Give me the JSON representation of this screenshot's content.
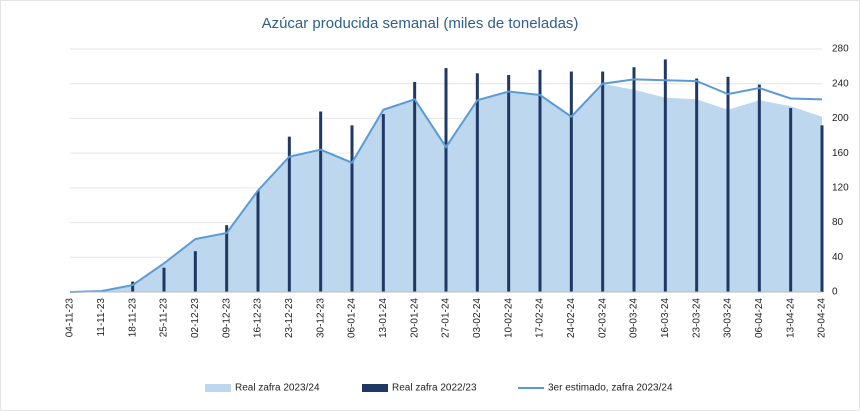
{
  "chart_data": {
    "type": "combo",
    "title": "Azúcar producida semanal (miles de toneladas)",
    "categories": [
      "04-11-23",
      "11-11-23",
      "18-11-23",
      "25-11-23",
      "02-12-23",
      "09-12-23",
      "16-12-23",
      "23-12-23",
      "30-12-23",
      "06-01-24",
      "13-01-24",
      "20-01-24",
      "27-01-24",
      "03-02-24",
      "10-02-24",
      "17-02-24",
      "24-02-24",
      "02-03-24",
      "09-03-24",
      "16-03-24",
      "23-03-24",
      "30-03-24",
      "06-04-24",
      "13-04-24",
      "20-04-24"
    ],
    "series": [
      {
        "name": "Real zafra 2023/24",
        "type": "area",
        "color": "#bcd7ee",
        "values": [
          0,
          1,
          8,
          33,
          61,
          68,
          117,
          156,
          164,
          149,
          210,
          222,
          167,
          221,
          231,
          227,
          202,
          240,
          233,
          224,
          222,
          210,
          221,
          214,
          202
        ]
      },
      {
        "name": "Real zafra 2022/23",
        "type": "bar",
        "color": "#1f3864",
        "values": [
          0,
          0,
          12,
          28,
          47,
          77,
          117,
          179,
          208,
          192,
          205,
          242,
          258,
          252,
          250,
          256,
          254,
          254,
          259,
          268,
          246,
          248,
          239,
          212,
          192
        ]
      },
      {
        "name": "3er estimado, zafra 2023/24",
        "type": "line",
        "color": "#5b9bd5",
        "values": [
          0,
          1,
          8,
          33,
          61,
          68,
          117,
          156,
          164,
          149,
          210,
          222,
          167,
          221,
          231,
          227,
          202,
          240,
          245,
          244,
          243,
          228,
          235,
          223,
          222
        ]
      }
    ],
    "ylim": [
      0,
      280
    ],
    "yticks": [
      0,
      40,
      80,
      120,
      160,
      200,
      240,
      280
    ],
    "y_axis_side": "right",
    "grid": true,
    "legend": "bottom"
  }
}
